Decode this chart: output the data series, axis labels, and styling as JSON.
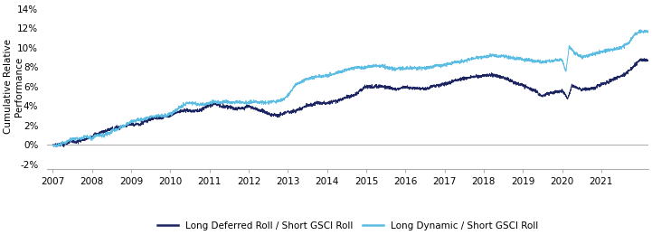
{
  "ylabel": "Cumulative Relative\nPerformance",
  "ylim": [
    -0.025,
    0.145
  ],
  "yticks": [
    -0.02,
    0.0,
    0.02,
    0.04,
    0.06,
    0.08,
    0.1,
    0.12,
    0.14
  ],
  "ytick_labels": [
    "-2%",
    "0%",
    "2%",
    "4%",
    "6%",
    "8%",
    "10%",
    "12%",
    "14%"
  ],
  "color_deferred": "#1c2461",
  "color_dynamic": "#5bbde4",
  "legend_labels": [
    "Long Deferred Roll / Short GSCI Roll",
    "Long Dynamic / Short GSCI Roll"
  ],
  "background_color": "#ffffff",
  "line_width": 0.7,
  "figsize": [
    7.21,
    2.6
  ],
  "dpi": 100
}
